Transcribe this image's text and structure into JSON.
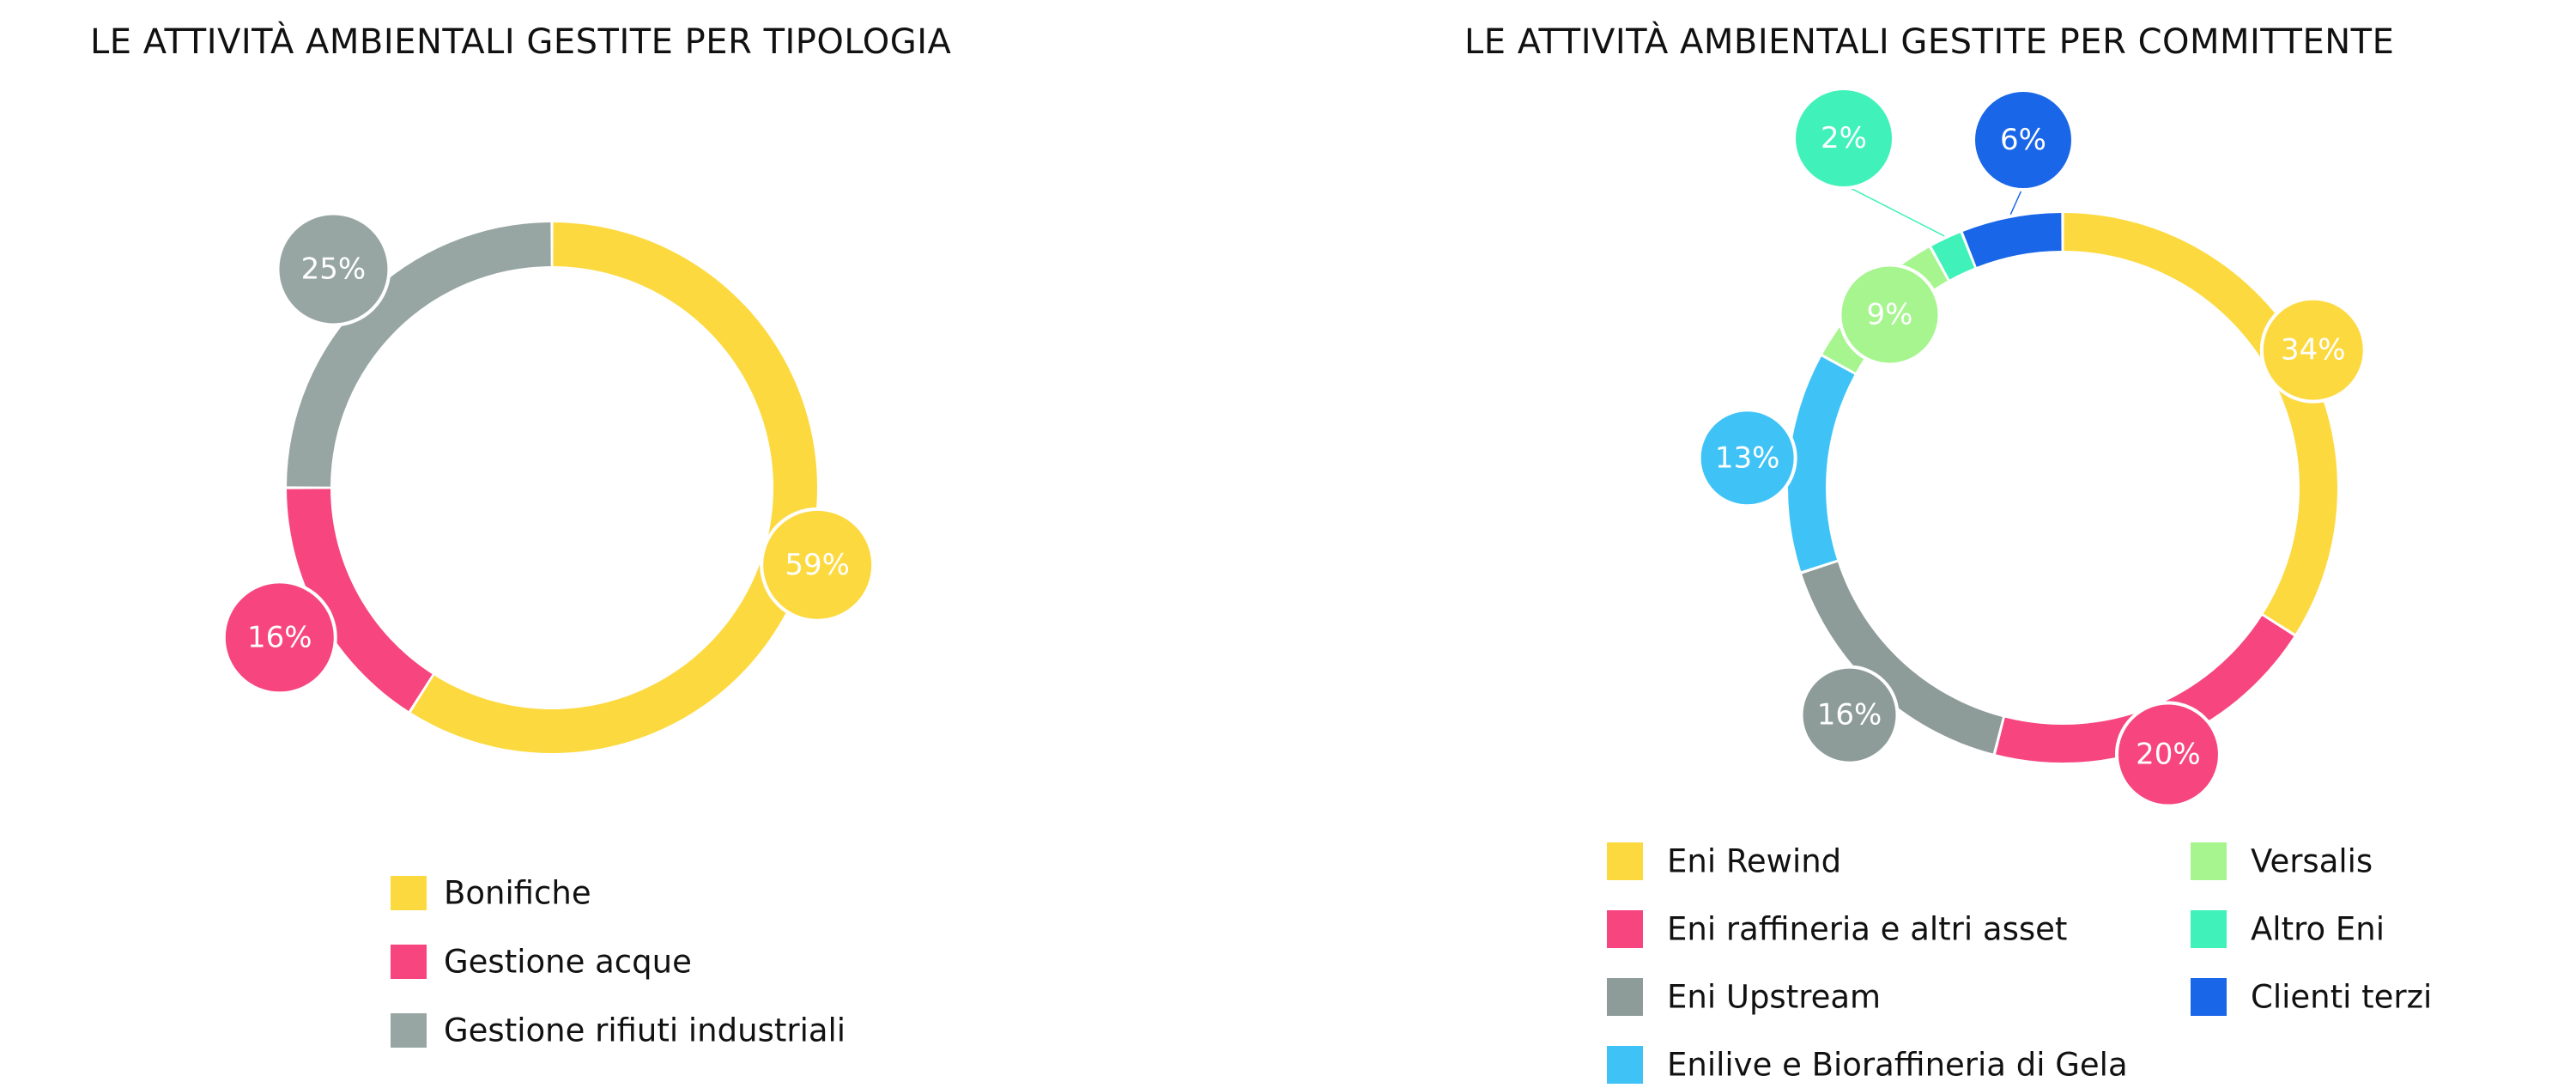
{
  "chart_data": [
    {
      "type": "pie",
      "title": "LE ATTIVITÀ AMBIENTALI GESTITE PER TIPOLOGIA",
      "categories": [
        "Bonifiche",
        "Gestione acque",
        "Gestione rifiuti industriali"
      ],
      "values": [
        59,
        16,
        25
      ],
      "labels": [
        "59%",
        "16%",
        "25%"
      ],
      "colors": [
        "#FDD940",
        "#F7457F",
        "#97A6A3"
      ],
      "legend": "bottom",
      "style": "donut"
    },
    {
      "type": "pie",
      "title": "LE ATTIVITÀ AMBIENTALI GESTITE PER COMMITTENTE",
      "categories": [
        "Eni Rewind",
        "Eni raffineria e altri asset",
        "Eni Upstream",
        "Enilive e Bioraffineria di Gela",
        "Versalis",
        "Altro Eni",
        "Clienti terzi"
      ],
      "values": [
        34,
        20,
        16,
        13,
        9,
        2,
        6
      ],
      "labels": [
        "34%",
        "20%",
        "16%",
        "13%",
        "9%",
        "2%",
        "6%"
      ],
      "colors": [
        "#FDD940",
        "#F7457F",
        "#8E9C99",
        "#3FC3F7",
        "#A6F58F",
        "#40F2B9",
        "#1A66E8"
      ],
      "legend": "bottom",
      "style": "donut"
    }
  ]
}
